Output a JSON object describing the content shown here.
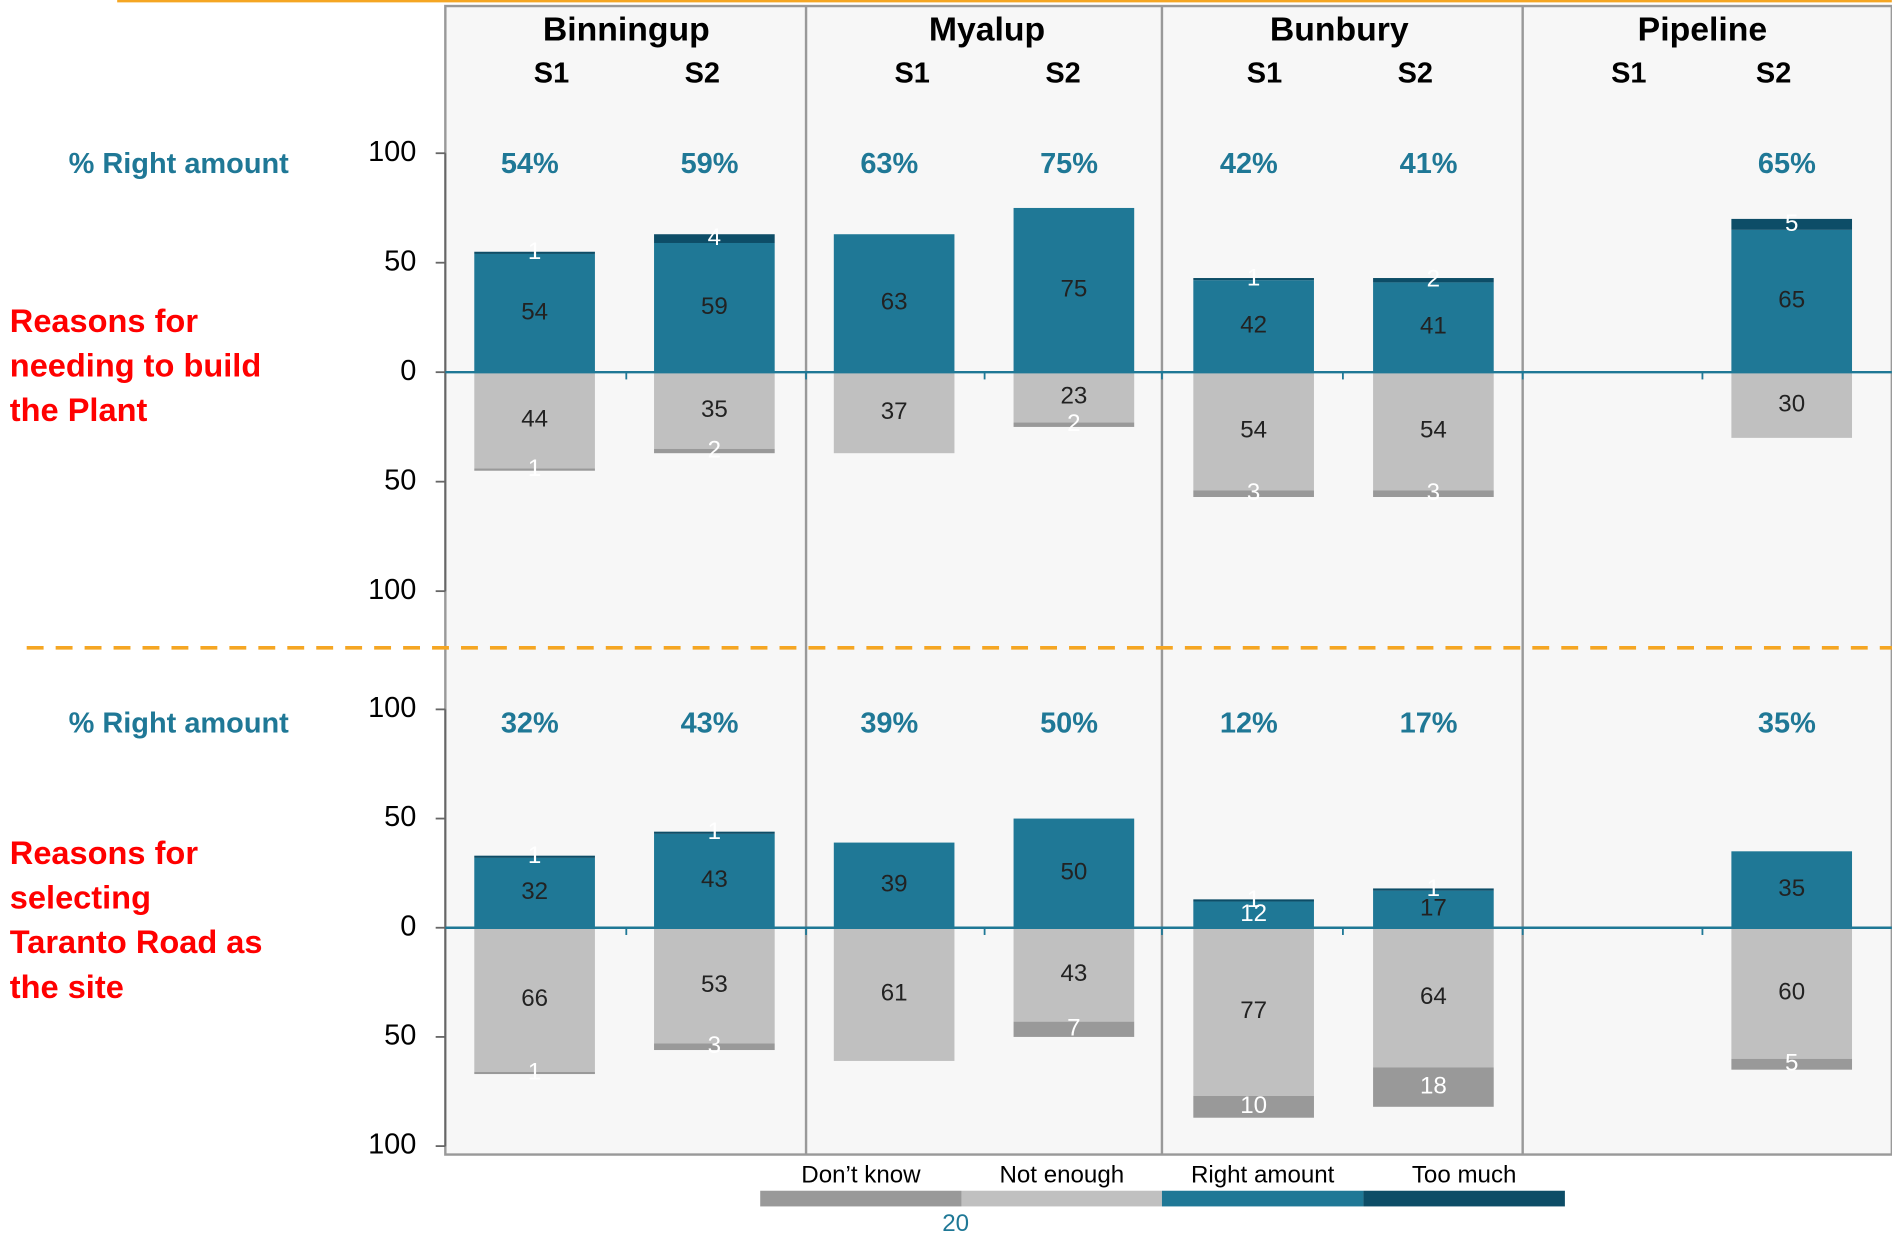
{
  "header": {
    "groups": [
      "Binningup",
      "Myalup",
      "Bunbury",
      "Pipeline"
    ],
    "categories": [
      "S1",
      "S2",
      "S1",
      "S2",
      "S1",
      "S2",
      "S1",
      "S2"
    ]
  },
  "chart_data": [
    {
      "type": "bar",
      "stacked": true,
      "title": [
        "Reasons for",
        "needing to build",
        "the Plant"
      ],
      "row_label": "% Right amount",
      "top_labels": [
        "54%",
        "59%",
        "63%",
        "75%",
        "42%",
        "41%",
        null,
        "65%"
      ],
      "ylim": [
        -100,
        100
      ],
      "yticks": [
        {
          "value": -100,
          "label": "100"
        },
        {
          "value": -50,
          "label": "50"
        },
        0,
        50,
        100
      ],
      "series": [
        {
          "name": "Don’t know",
          "color": "#999999",
          "values": [
            -1,
            -2,
            null,
            -2,
            -3,
            -3,
            null,
            null
          ],
          "value_labels": [
            "1",
            "2",
            null,
            "2",
            "3",
            "3",
            null,
            null
          ]
        },
        {
          "name": "Not enough",
          "color": "#c0c0c0",
          "values": [
            -44,
            -35,
            -37,
            -23,
            -54,
            -54,
            null,
            -30
          ],
          "value_labels": [
            "44",
            "35",
            "37",
            "23",
            "54",
            "54",
            null,
            "30"
          ]
        },
        {
          "name": "Right amount",
          "color": "#1f7896",
          "values": [
            54,
            59,
            63,
            75,
            42,
            41,
            null,
            65
          ]
        },
        {
          "name": "Too much",
          "color": "#0d4d67",
          "values": [
            1,
            4,
            null,
            null,
            1,
            2,
            null,
            5
          ]
        }
      ]
    },
    {
      "type": "bar",
      "stacked": true,
      "title": [
        "Reasons for",
        "selecting",
        "Taranto Road as",
        "the site"
      ],
      "row_label": "% Right amount",
      "top_labels": [
        "32%",
        "43%",
        "39%",
        "50%",
        "12%",
        "17%",
        null,
        "35%"
      ],
      "ylim": [
        -100,
        100
      ],
      "yticks": [
        {
          "value": -100,
          "label": "100"
        },
        {
          "value": -50,
          "label": "50"
        },
        0,
        50,
        100
      ],
      "series": [
        {
          "name": "Don’t know",
          "color": "#999999",
          "values": [
            -1,
            -3,
            null,
            -7,
            -10,
            -18,
            null,
            -5
          ],
          "value_labels": [
            "1",
            "3",
            null,
            "7",
            "10",
            "18",
            null,
            "5"
          ]
        },
        {
          "name": "Not enough",
          "color": "#c0c0c0",
          "values": [
            -66,
            -53,
            -61,
            -43,
            -77,
            -64,
            null,
            -60
          ],
          "value_labels": [
            "66",
            "53",
            "61",
            "43",
            "77",
            "64",
            null,
            "60"
          ]
        },
        {
          "name": "Right amount",
          "color": "#1f7896",
          "values": [
            32,
            43,
            39,
            50,
            12,
            17,
            null,
            35
          ]
        },
        {
          "name": "Too much",
          "color": "#0d4d67",
          "values": [
            1,
            1,
            null,
            null,
            1,
            1,
            null,
            null
          ]
        }
      ]
    }
  ],
  "page_number": "20"
}
